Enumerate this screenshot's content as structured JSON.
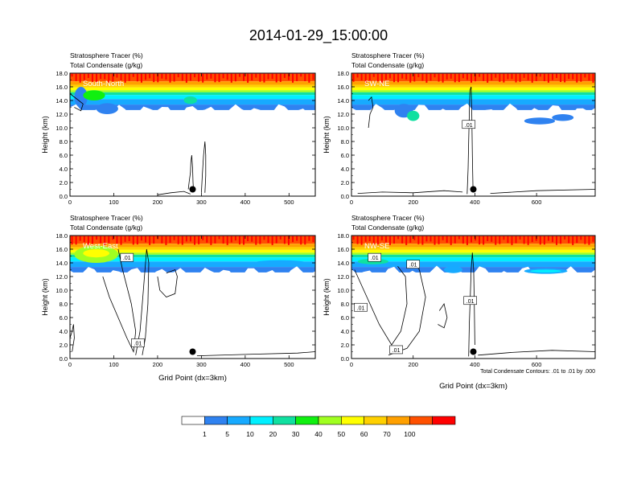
{
  "page_title": "2014-01-29_15:00:00",
  "colors": {
    "band0": "#ffffff",
    "band1": "#2f82f0",
    "band2": "#17aaff",
    "band3": "#00f0ff",
    "band4": "#10e0a0",
    "band5": "#10f010",
    "band6": "#a0ff20",
    "band7": "#ffff00",
    "band8": "#ffd000",
    "band9": "#ffa000",
    "band10": "#ff5000",
    "band11": "#ff0000"
  },
  "colorbar": {
    "labels": [
      "1",
      "5",
      "10",
      "20",
      "30",
      "40",
      "50",
      "60",
      "70",
      "100"
    ]
  },
  "chart_data": [
    {
      "type": "heatmap",
      "title_line1": "Stratosphere Tracer   (%)",
      "title_line2": "Total Condensate   (g/kg)",
      "panel_label": "South-North",
      "ylabel": "Height (km)",
      "xlabel": "",
      "xlim": [
        0,
        560
      ],
      "ylim": [
        0,
        18
      ],
      "xticks": [
        "0",
        "100",
        "200",
        "300",
        "400",
        "500"
      ],
      "yticks": [
        "0.0",
        "2.0",
        "4.0",
        "6.0",
        "8.0",
        "10.0",
        "12.0",
        "14.0",
        "16.0",
        "18.0"
      ],
      "marker": {
        "x": 280,
        "y": 1.0
      },
      "contour_labels": []
    },
    {
      "type": "heatmap",
      "title_line1": "Stratosphere Tracer   (%)",
      "title_line2": "Total Condensate   (g/kg)",
      "panel_label": "SW-NE",
      "ylabel": "Height (km)",
      "xlabel": "",
      "xlim": [
        0,
        790
      ],
      "ylim": [
        0,
        18
      ],
      "xticks": [
        "0",
        "200",
        "400",
        "600"
      ],
      "yticks": [
        "0.0",
        "2.0",
        "4.0",
        "6.0",
        "8.0",
        "10.0",
        "12.0",
        "14.0",
        "16.0",
        "18.0"
      ],
      "marker": {
        "x": 395,
        "y": 1.0
      },
      "contour_labels": [
        ".01"
      ]
    },
    {
      "type": "heatmap",
      "title_line1": "Stratosphere Tracer   (%)",
      "title_line2": "Total Condensate   (g/kg)",
      "panel_label": "West-East",
      "ylabel": "Height (km)",
      "xlabel": "Grid Point (dx=3km)",
      "xlim": [
        0,
        560
      ],
      "ylim": [
        0,
        18
      ],
      "xticks": [
        "0",
        "100",
        "200",
        "300",
        "400",
        "500"
      ],
      "yticks": [
        "0.0",
        "2.0",
        "4.0",
        "6.0",
        "8.0",
        "10.0",
        "12.0",
        "14.0",
        "16.0",
        "18.0"
      ],
      "marker": {
        "x": 280,
        "y": 1.0
      },
      "contour_labels": [
        ".01",
        ".01"
      ]
    },
    {
      "type": "heatmap",
      "title_line1": "Stratosphere Tracer   (%)",
      "title_line2": "Total Condensate   (g/kg)",
      "panel_label": "NW-SE",
      "ylabel": "Height (km)",
      "xlabel": "Grid Point (dx=3km)",
      "footnote": "Total Condensate Contours: .01 to .01 by .000",
      "xlim": [
        0,
        790
      ],
      "ylim": [
        0,
        18
      ],
      "xticks": [
        "0",
        "200",
        "400",
        "600"
      ],
      "yticks": [
        "0.0",
        "2.0",
        "4.0",
        "6.0",
        "8.0",
        "10.0",
        "12.0",
        "14.0",
        "16.0",
        "18.0"
      ],
      "marker": {
        "x": 395,
        "y": 1.0
      },
      "contour_labels": [
        ".01",
        ".01",
        ".01",
        ".01",
        ".01"
      ]
    }
  ]
}
